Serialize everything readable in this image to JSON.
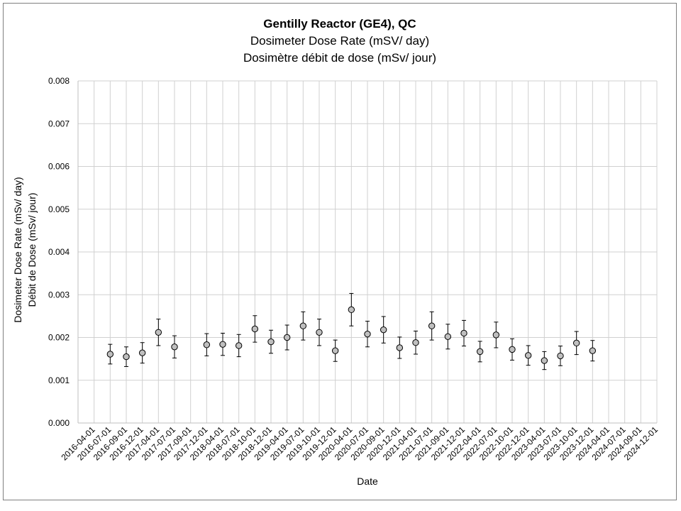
{
  "chart_data": {
    "type": "scatter",
    "title": "Gentilly Reactor (GE4), QC",
    "subtitle_en": "Dosimeter Dose Rate (mSV/ day)",
    "subtitle_fr": "Dosimètre débit de dose (mSv/ jour)",
    "xlabel": "Date",
    "ylabel_en": "Dosimeter Dose Rate (mSv/ day)",
    "ylabel_fr": "Débit de Dose (mSv/ jour)",
    "ylim": [
      0,
      0.008
    ],
    "y_ticks": [
      "0.000",
      "0.001",
      "0.002",
      "0.003",
      "0.004",
      "0.005",
      "0.006",
      "0.007",
      "0.008"
    ],
    "x_ticks": [
      "2016-04-01",
      "2016-07-01",
      "2016-09-01",
      "2016-12-01",
      "2017-04-01",
      "2017-07-01",
      "2017-09-01",
      "2017-12-01",
      "2018-04-01",
      "2018-07-01",
      "2018-10-01",
      "2018-12-01",
      "2019-04-01",
      "2019-07-01",
      "2019-10-01",
      "2019-12-01",
      "2020-04-01",
      "2020-07-01",
      "2020-09-01",
      "2020-12-01",
      "2021-04-01",
      "2021-07-01",
      "2021-09-01",
      "2021-12-01",
      "2022-04-01",
      "2022-07-01",
      "2022-10-01",
      "2022-12-01",
      "2023-04-01",
      "2023-07-01",
      "2023-10-01",
      "2023-12-01",
      "2024-04-01",
      "2024-07-01",
      "2024-09-01",
      "2024-12-01"
    ],
    "grid": true,
    "marker_color": "#bfbfbf",
    "points": [
      {
        "x": "2016-07-01",
        "y": 0.00161,
        "err": 0.00023
      },
      {
        "x": "2016-09-01",
        "y": 0.00155,
        "err": 0.00023
      },
      {
        "x": "2016-12-01",
        "y": 0.00164,
        "err": 0.00024
      },
      {
        "x": "2017-04-01",
        "y": 0.00212,
        "err": 0.00031
      },
      {
        "x": "2017-07-01",
        "y": 0.00178,
        "err": 0.00026
      },
      {
        "x": "2017-12-01",
        "y": 0.00183,
        "err": 0.00026
      },
      {
        "x": "2018-04-01",
        "y": 0.00184,
        "err": 0.00026
      },
      {
        "x": "2018-07-01",
        "y": 0.00181,
        "err": 0.00026
      },
      {
        "x": "2018-10-01",
        "y": 0.0022,
        "err": 0.00031
      },
      {
        "x": "2018-12-01",
        "y": 0.0019,
        "err": 0.00027
      },
      {
        "x": "2019-04-01",
        "y": 0.002,
        "err": 0.00029
      },
      {
        "x": "2019-07-01",
        "y": 0.00227,
        "err": 0.00033
      },
      {
        "x": "2019-10-01",
        "y": 0.00212,
        "err": 0.00031
      },
      {
        "x": "2019-12-01",
        "y": 0.00169,
        "err": 0.00025
      },
      {
        "x": "2020-04-01",
        "y": 0.00265,
        "err": 0.00038
      },
      {
        "x": "2020-07-01",
        "y": 0.00208,
        "err": 0.0003
      },
      {
        "x": "2020-09-01",
        "y": 0.00218,
        "err": 0.00031
      },
      {
        "x": "2020-12-01",
        "y": 0.00176,
        "err": 0.00025
      },
      {
        "x": "2021-04-01",
        "y": 0.00188,
        "err": 0.00027
      },
      {
        "x": "2021-07-01",
        "y": 0.00227,
        "err": 0.00033
      },
      {
        "x": "2021-09-01",
        "y": 0.00202,
        "err": 0.00029
      },
      {
        "x": "2021-12-01",
        "y": 0.0021,
        "err": 0.0003
      },
      {
        "x": "2022-04-01",
        "y": 0.00167,
        "err": 0.00024
      },
      {
        "x": "2022-07-01",
        "y": 0.00206,
        "err": 0.0003
      },
      {
        "x": "2022-10-01",
        "y": 0.00172,
        "err": 0.00025
      },
      {
        "x": "2022-12-01",
        "y": 0.00158,
        "err": 0.00023
      },
      {
        "x": "2023-04-01",
        "y": 0.00146,
        "err": 0.00021
      },
      {
        "x": "2023-07-01",
        "y": 0.00157,
        "err": 0.00023
      },
      {
        "x": "2023-10-01",
        "y": 0.00187,
        "err": 0.00027
      },
      {
        "x": "2023-12-01",
        "y": 0.00169,
        "err": 0.00024
      }
    ]
  }
}
